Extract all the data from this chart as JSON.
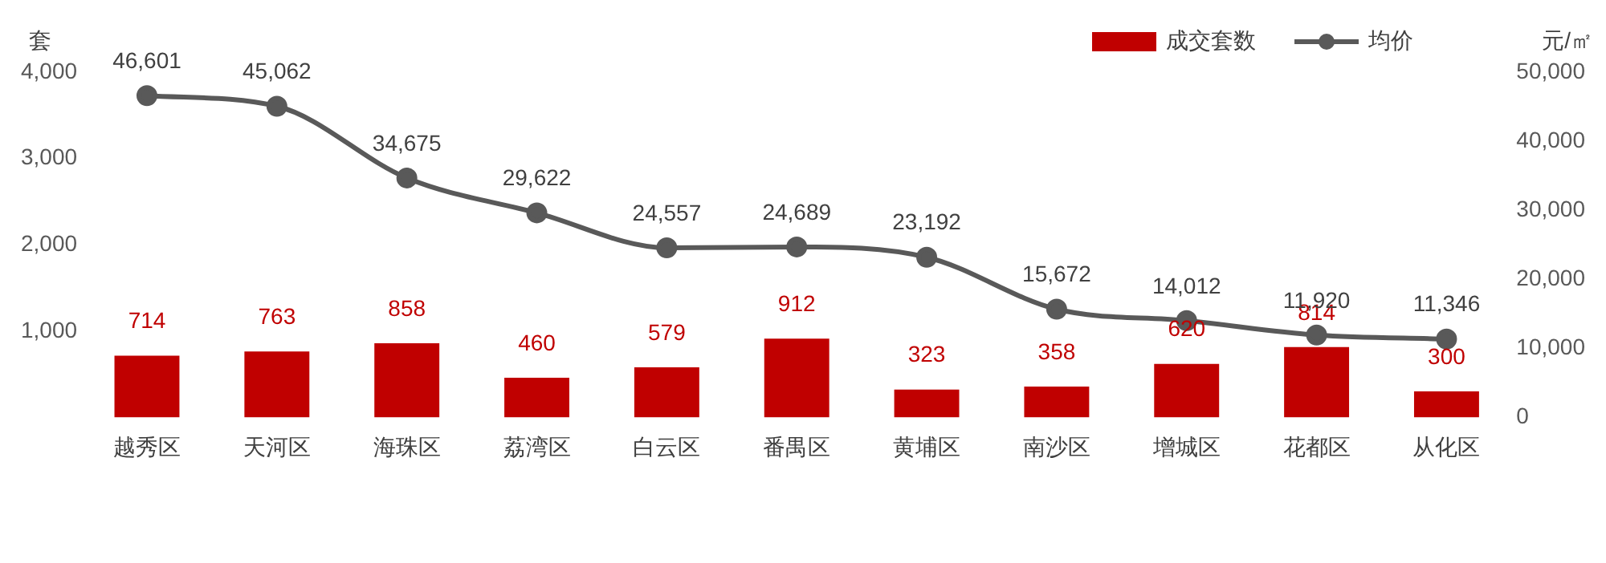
{
  "chart_data": {
    "type": "bar",
    "ylabel": "套",
    "y2label": "元/㎡",
    "categories": [
      "越秀区",
      "天河区",
      "海珠区",
      "荔湾区",
      "白云区",
      "番禺区",
      "黄埔区",
      "南沙区",
      "增城区",
      "花都区",
      "从化区"
    ],
    "series": [
      {
        "name": "成交套数",
        "color": "#c00000",
        "values": [
          714,
          763,
          858,
          460,
          579,
          912,
          323,
          358,
          620,
          814,
          300
        ],
        "value_labels": [
          "714",
          "763",
          "858",
          "460",
          "579",
          "912",
          "323",
          "358",
          "620",
          "814",
          "300"
        ]
      },
      {
        "name": "均价",
        "type": "line",
        "axis": "y2",
        "color": "#595959",
        "marker": "circle",
        "line_style": "solid",
        "values": [
          46601,
          45062,
          34675,
          29622,
          24557,
          24689,
          23192,
          15672,
          14012,
          11920,
          11346
        ],
        "value_labels": [
          "46,601",
          "45,062",
          "34,675",
          "29,622",
          "24,557",
          "24,689",
          "23,192",
          "15,672",
          "14,012",
          "11,920",
          "11,346"
        ]
      }
    ],
    "ylim": [
      0,
      4000
    ],
    "yticks": [
      {
        "value": 1000,
        "label": "1,000"
      },
      {
        "value": 2000,
        "label": "2,000"
      },
      {
        "value": 3000,
        "label": "3,000"
      },
      {
        "value": 4000,
        "label": "4,000"
      }
    ],
    "y2lim": [
      0,
      50000
    ],
    "y2ticks": [
      0,
      {
        "value": 10000,
        "label": "10,000"
      },
      {
        "value": 20000,
        "label": "20,000"
      },
      {
        "value": 30000,
        "label": "30,000"
      },
      {
        "value": 40000,
        "label": "40,000"
      },
      {
        "value": 50000,
        "label": "50,000"
      }
    ],
    "grid": false,
    "legend": "top right"
  }
}
